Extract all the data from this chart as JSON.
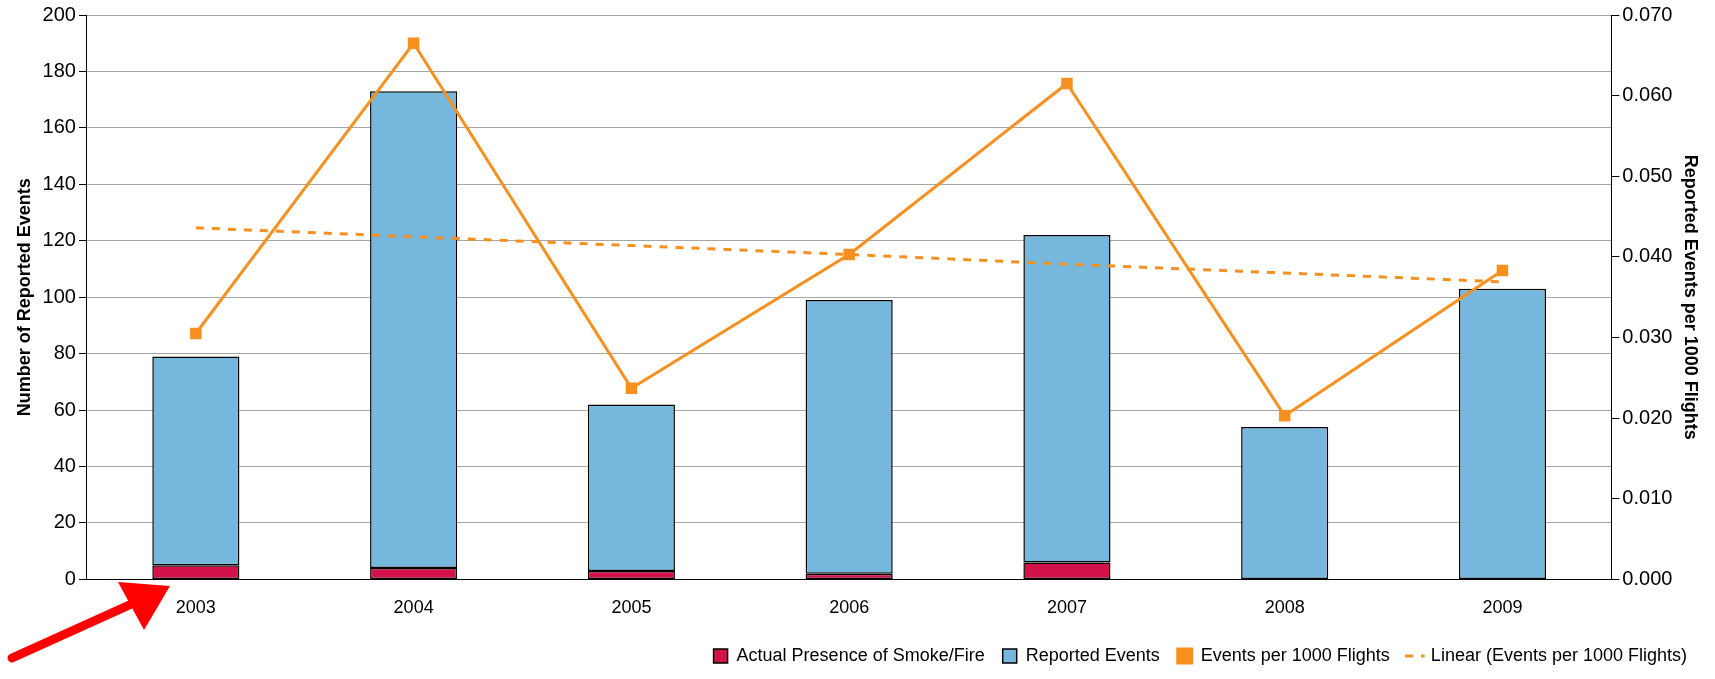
{
  "chart_data": {
    "type": "bar",
    "ylabel": "Number of Reported Events",
    "y2label": "Reported Events per 1000 Flights",
    "categories": [
      "2003",
      "2004",
      "2005",
      "2006",
      "2007",
      "2008",
      "2009"
    ],
    "stacked": true,
    "series": [
      {
        "name": "Actual Presence of Smoke/Fire",
        "color": "#d4124a",
        "values": [
          5,
          4,
          3,
          2,
          6,
          0,
          0
        ]
      },
      {
        "name": "Reported Events",
        "color": "#76b7de",
        "values": [
          74,
          169,
          59,
          97,
          116,
          54,
          103
        ]
      },
      {
        "name": "Events per 1000 Flights",
        "type": "line",
        "axis": "y2",
        "color": "#f7901e",
        "marker": "square",
        "line_style": "solid",
        "values": [
          0.0305,
          0.0665,
          0.0237,
          0.0403,
          0.0615,
          0.0203,
          0.0383
        ]
      },
      {
        "name": "Linear (Events per 1000 Flights)",
        "type": "line",
        "axis": "y2",
        "color": "#f7901e",
        "marker": "none",
        "line_style": "dashed",
        "values": [
          0.0436,
          0.0425,
          0.0414,
          0.0403,
          0.0391,
          0.038,
          0.0369
        ]
      }
    ],
    "ylim": [
      0,
      200
    ],
    "yticks": [
      0,
      20,
      40,
      60,
      80,
      100,
      120,
      140,
      160,
      180,
      200
    ],
    "y2lim": [
      0,
      0.07
    ],
    "y2ticks": [
      {
        "value": 0,
        "label": "0.000"
      },
      {
        "value": 0.01,
        "label": "0.010"
      },
      {
        "value": 0.02,
        "label": "0.020"
      },
      {
        "value": 0.03,
        "label": "0.030"
      },
      {
        "value": 0.04,
        "label": "0.040"
      },
      {
        "value": 0.05,
        "label": "0.050"
      },
      {
        "value": 0.06,
        "label": "0.060"
      },
      {
        "value": 0.07,
        "label": "0.070"
      }
    ],
    "grid": "y",
    "legend": "bottom right"
  }
}
